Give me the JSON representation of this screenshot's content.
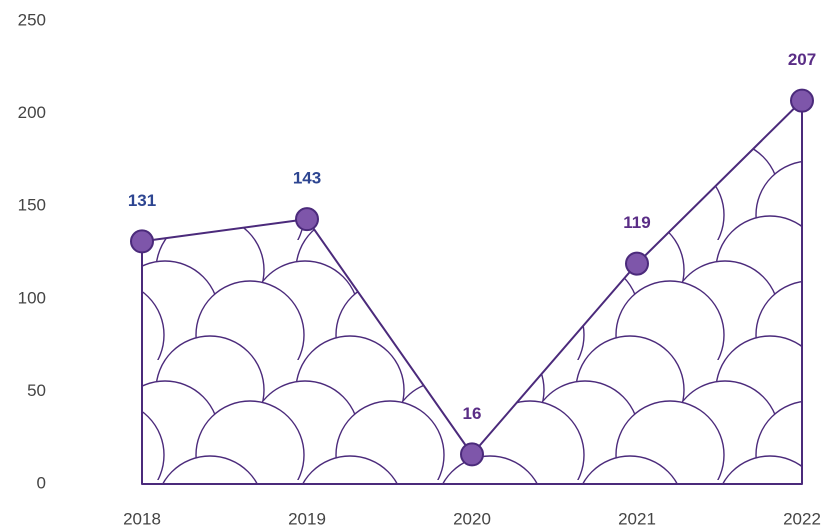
{
  "chart_data": {
    "type": "area",
    "categories": [
      "2018",
      "2019",
      "2020",
      "2021",
      "2022"
    ],
    "values": [
      131,
      143,
      16,
      119,
      207
    ],
    "value_label_colors": [
      "#2d4591",
      "#2d4591",
      "#5a2d86",
      "#5a2d86",
      "#5a2d86"
    ],
    "color": "#4b2a7b",
    "marker_color": "#7e56aa",
    "ylim": [
      0,
      250
    ],
    "yticks": [
      0,
      50,
      100,
      150,
      200,
      250
    ],
    "grid": false
  }
}
